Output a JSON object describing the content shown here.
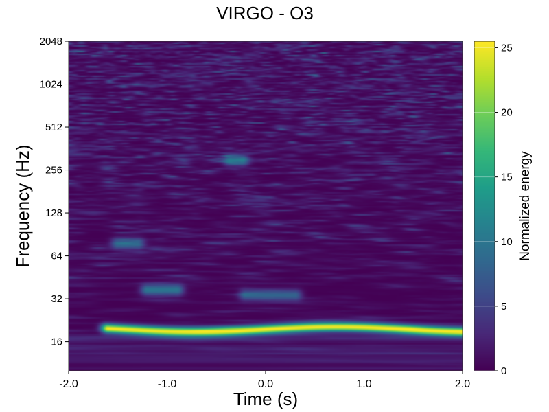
{
  "chart_data": {
    "type": "heatmap",
    "title": "VIRGO - O3",
    "xlabel": "Time (s)",
    "ylabel": "Frequency (Hz)",
    "xlim": [
      -2.0,
      2.0
    ],
    "x_ticks": [
      "-2.0",
      "-1.0",
      "0.0",
      "1.0",
      "2.0"
    ],
    "x_tick_values": [
      -2.0,
      -1.0,
      0.0,
      1.0,
      2.0
    ],
    "ylim": [
      10,
      2048
    ],
    "yscale": "log2",
    "y_ticks": [
      "16",
      "32",
      "64",
      "128",
      "256",
      "512",
      "1024",
      "2048"
    ],
    "y_tick_values": [
      16,
      32,
      64,
      128,
      256,
      512,
      1024,
      2048
    ],
    "colorbar": {
      "label": "Normalized energy",
      "range": [
        0,
        25.5
      ],
      "ticks": [
        "0",
        "5",
        "10",
        "15",
        "20",
        "25"
      ],
      "tick_values": [
        0,
        5,
        10,
        15,
        20,
        25
      ],
      "colormap": "viridis"
    },
    "features": [
      {
        "t_start": -1.6,
        "t_end": 2.0,
        "freq_hz": 19.5,
        "energy": 25
      },
      {
        "t_start": -1.2,
        "t_end": -0.9,
        "freq_hz": 37,
        "energy": 10
      },
      {
        "t_start": -0.2,
        "t_end": 0.3,
        "freq_hz": 34,
        "energy": 8
      },
      {
        "t_start": -1.5,
        "t_end": -1.3,
        "freq_hz": 78,
        "energy": 8
      },
      {
        "t_start": -0.3,
        "t_end": -0.3,
        "freq_hz": 300,
        "energy": 10
      }
    ]
  }
}
